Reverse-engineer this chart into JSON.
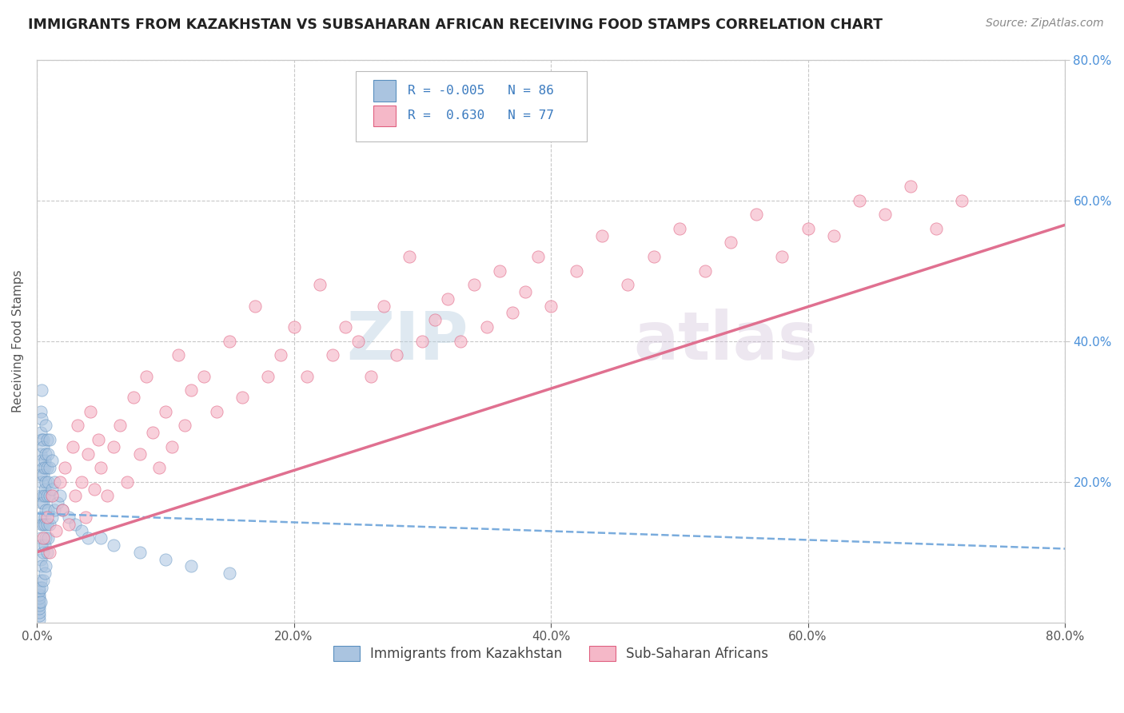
{
  "title": "IMMIGRANTS FROM KAZAKHSTAN VS SUBSAHARAN AFRICAN RECEIVING FOOD STAMPS CORRELATION CHART",
  "source": "Source: ZipAtlas.com",
  "ylabel": "Receiving Food Stamps",
  "xlim": [
    0.0,
    0.8
  ],
  "ylim": [
    0.0,
    0.8
  ],
  "xtick_labels": [
    "0.0%",
    "20.0%",
    "40.0%",
    "60.0%",
    "80.0%"
  ],
  "xtick_vals": [
    0.0,
    0.2,
    0.4,
    0.6,
    0.8
  ],
  "ytick_labels": [
    "20.0%",
    "40.0%",
    "60.0%",
    "80.0%"
  ],
  "ytick_vals": [
    0.2,
    0.4,
    0.6,
    0.8
  ],
  "background_color": "#ffffff",
  "grid_color": "#c8c8c8",
  "blue_color": "#aac4e0",
  "pink_color": "#f5b8c8",
  "blue_edge_color": "#5a8fbf",
  "pink_edge_color": "#e06080",
  "blue_line_color": "#7aacdd",
  "pink_line_color": "#e07090",
  "title_color": "#222222",
  "stat_color": "#3a7abf",
  "source_color": "#888888",
  "right_tick_color": "#4a90d9",
  "kazakhstan_x": [
    0.002,
    0.002,
    0.002,
    0.002,
    0.002,
    0.002,
    0.002,
    0.002,
    0.002,
    0.002,
    0.003,
    0.003,
    0.003,
    0.003,
    0.003,
    0.003,
    0.003,
    0.003,
    0.003,
    0.003,
    0.004,
    0.004,
    0.004,
    0.004,
    0.004,
    0.004,
    0.004,
    0.004,
    0.004,
    0.004,
    0.005,
    0.005,
    0.005,
    0.005,
    0.005,
    0.005,
    0.005,
    0.005,
    0.005,
    0.006,
    0.006,
    0.006,
    0.006,
    0.006,
    0.006,
    0.006,
    0.006,
    0.007,
    0.007,
    0.007,
    0.007,
    0.007,
    0.007,
    0.008,
    0.008,
    0.008,
    0.008,
    0.008,
    0.009,
    0.009,
    0.009,
    0.009,
    0.01,
    0.01,
    0.01,
    0.01,
    0.012,
    0.012,
    0.012,
    0.014,
    0.014,
    0.016,
    0.018,
    0.02,
    0.025,
    0.03,
    0.035,
    0.04,
    0.05,
    0.06,
    0.08,
    0.1,
    0.12,
    0.15
  ],
  "kazakhstan_y": [
    0.005,
    0.01,
    0.015,
    0.02,
    0.025,
    0.03,
    0.035,
    0.04,
    0.045,
    0.05,
    0.03,
    0.06,
    0.09,
    0.12,
    0.15,
    0.18,
    0.21,
    0.24,
    0.27,
    0.3,
    0.05,
    0.08,
    0.11,
    0.14,
    0.17,
    0.2,
    0.23,
    0.26,
    0.29,
    0.33,
    0.06,
    0.1,
    0.14,
    0.18,
    0.22,
    0.26,
    0.17,
    0.21,
    0.25,
    0.07,
    0.11,
    0.15,
    0.19,
    0.23,
    0.14,
    0.18,
    0.22,
    0.08,
    0.12,
    0.16,
    0.2,
    0.24,
    0.28,
    0.1,
    0.14,
    0.18,
    0.22,
    0.26,
    0.12,
    0.16,
    0.2,
    0.24,
    0.14,
    0.18,
    0.22,
    0.26,
    0.15,
    0.19,
    0.23,
    0.16,
    0.2,
    0.17,
    0.18,
    0.16,
    0.15,
    0.14,
    0.13,
    0.12,
    0.12,
    0.11,
    0.1,
    0.09,
    0.08,
    0.07
  ],
  "subsaharan_x": [
    0.005,
    0.008,
    0.01,
    0.012,
    0.015,
    0.018,
    0.02,
    0.022,
    0.025,
    0.028,
    0.03,
    0.032,
    0.035,
    0.038,
    0.04,
    0.042,
    0.045,
    0.048,
    0.05,
    0.055,
    0.06,
    0.065,
    0.07,
    0.075,
    0.08,
    0.085,
    0.09,
    0.095,
    0.1,
    0.105,
    0.11,
    0.115,
    0.12,
    0.13,
    0.14,
    0.15,
    0.16,
    0.17,
    0.18,
    0.19,
    0.2,
    0.21,
    0.22,
    0.23,
    0.24,
    0.25,
    0.26,
    0.27,
    0.28,
    0.29,
    0.3,
    0.31,
    0.32,
    0.33,
    0.34,
    0.35,
    0.36,
    0.37,
    0.38,
    0.39,
    0.4,
    0.42,
    0.44,
    0.46,
    0.48,
    0.5,
    0.52,
    0.54,
    0.56,
    0.58,
    0.6,
    0.62,
    0.64,
    0.66,
    0.68,
    0.7,
    0.72
  ],
  "subsaharan_y": [
    0.12,
    0.15,
    0.1,
    0.18,
    0.13,
    0.2,
    0.16,
    0.22,
    0.14,
    0.25,
    0.18,
    0.28,
    0.2,
    0.15,
    0.24,
    0.3,
    0.19,
    0.26,
    0.22,
    0.18,
    0.25,
    0.28,
    0.2,
    0.32,
    0.24,
    0.35,
    0.27,
    0.22,
    0.3,
    0.25,
    0.38,
    0.28,
    0.33,
    0.35,
    0.3,
    0.4,
    0.32,
    0.45,
    0.35,
    0.38,
    0.42,
    0.35,
    0.48,
    0.38,
    0.42,
    0.4,
    0.35,
    0.45,
    0.38,
    0.52,
    0.4,
    0.43,
    0.46,
    0.4,
    0.48,
    0.42,
    0.5,
    0.44,
    0.47,
    0.52,
    0.45,
    0.5,
    0.55,
    0.48,
    0.52,
    0.56,
    0.5,
    0.54,
    0.58,
    0.52,
    0.56,
    0.55,
    0.6,
    0.58,
    0.62,
    0.56,
    0.6
  ],
  "kaz_trend_x0": 0.0,
  "kaz_trend_y0": 0.155,
  "kaz_trend_x1": 0.8,
  "kaz_trend_y1": 0.105,
  "sub_trend_x0": 0.0,
  "sub_trend_y0": 0.1,
  "sub_trend_x1": 0.8,
  "sub_trend_y1": 0.565
}
